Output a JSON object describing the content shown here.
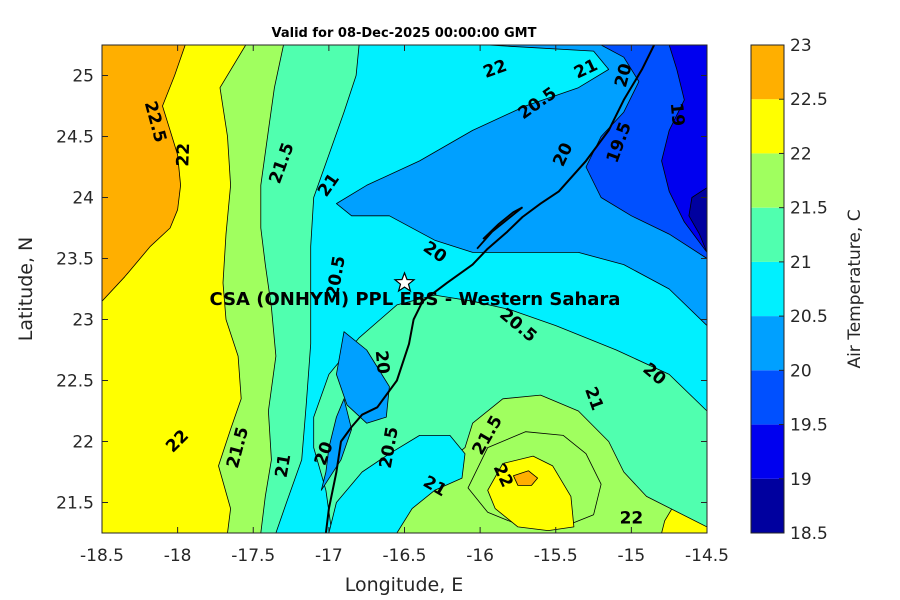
{
  "chart_data": {
    "type": "heatmap",
    "subtype": "filled-contour map",
    "title": "Valid for 08-Dec-2025 00:00:00 GMT",
    "xlabel": "Longitude, E",
    "ylabel": "Latitude, N",
    "xlim": [
      -18.5,
      -14.5
    ],
    "ylim": [
      21.25,
      25.25
    ],
    "xticks": [
      {
        "value": -18.5,
        "label": "-18.5"
      },
      {
        "value": -18,
        "label": "-18"
      },
      {
        "value": -17.5,
        "label": "-17.5"
      },
      {
        "value": -17,
        "label": "-17"
      },
      {
        "value": -16.5,
        "label": "-16.5"
      },
      {
        "value": -16,
        "label": "-16"
      },
      {
        "value": -15.5,
        "label": "-15.5"
      },
      {
        "value": -15,
        "label": "-15"
      },
      {
        "value": -14.5,
        "label": "-14.5"
      }
    ],
    "yticks": [
      {
        "value": 21.5,
        "label": "21.5"
      },
      {
        "value": 22,
        "label": "22"
      },
      {
        "value": 22.5,
        "label": "22.5"
      },
      {
        "value": 23,
        "label": "23"
      },
      {
        "value": 23.5,
        "label": "23.5"
      },
      {
        "value": 24,
        "label": "24"
      },
      {
        "value": 24.5,
        "label": "24.5"
      },
      {
        "value": 25,
        "label": "25"
      }
    ],
    "colorbar": {
      "label": "Air Temperature, C",
      "levels": [
        {
          "value": 18.5,
          "label": "18.5",
          "color": "#00009f"
        },
        {
          "value": 19,
          "label": "19",
          "color": "#0000ef"
        },
        {
          "value": 19.5,
          "label": "19.5",
          "color": "#0050ff"
        },
        {
          "value": 20,
          "label": "20",
          "color": "#00a0ff"
        },
        {
          "value": 20.5,
          "label": "20.5",
          "color": "#00f0ff"
        },
        {
          "value": 21,
          "label": "21",
          "color": "#50ffaf"
        },
        {
          "value": 21.5,
          "label": "21.5",
          "color": "#a0ff5f"
        },
        {
          "value": 22,
          "label": "22",
          "color": "#ffff00"
        },
        {
          "value": 22.5,
          "label": "22.5",
          "color": "#ffaf00"
        },
        {
          "value": 23,
          "label": "23",
          "color": "#ff5000"
        }
      ]
    },
    "regions": [
      {
        "level": 22,
        "points": [
          [
            -18.5,
            21.25
          ],
          [
            -14.5,
            21.25
          ],
          [
            -14.5,
            25.25
          ],
          [
            -18.5,
            25.25
          ]
        ]
      },
      {
        "level": 22.5,
        "points": [
          [
            -18.5,
            23.15
          ],
          [
            -18.5,
            25.25
          ],
          [
            -17.95,
            25.25
          ],
          [
            -18.02,
            25.0
          ],
          [
            -18.1,
            24.75
          ],
          [
            -18.05,
            24.55
          ],
          [
            -18.0,
            24.35
          ],
          [
            -17.98,
            24.1
          ],
          [
            -18.0,
            23.9
          ],
          [
            -18.05,
            23.75
          ],
          [
            -18.18,
            23.6
          ],
          [
            -18.35,
            23.35
          ]
        ]
      },
      {
        "level": 21.5,
        "points": [
          [
            -17.55,
            25.25
          ],
          [
            -14.5,
            25.25
          ],
          [
            -14.5,
            21.75
          ],
          [
            -14.65,
            21.62
          ],
          [
            -14.78,
            21.35
          ],
          [
            -14.8,
            21.25
          ],
          [
            -17.67,
            21.25
          ],
          [
            -17.65,
            21.45
          ],
          [
            -17.73,
            21.8
          ],
          [
            -17.65,
            22.1
          ],
          [
            -17.58,
            22.35
          ],
          [
            -17.6,
            22.7
          ],
          [
            -17.68,
            23.0
          ],
          [
            -17.7,
            23.3
          ],
          [
            -17.68,
            23.7
          ],
          [
            -17.65,
            24.1
          ],
          [
            -17.67,
            24.5
          ],
          [
            -17.72,
            24.9
          ]
        ]
      },
      {
        "level": 21,
        "points": [
          [
            -17.3,
            25.25
          ],
          [
            -14.5,
            25.25
          ],
          [
            -14.5,
            21.3
          ],
          [
            -14.9,
            21.55
          ],
          [
            -15.05,
            21.75
          ],
          [
            -15.15,
            22.0
          ],
          [
            -15.35,
            22.25
          ],
          [
            -15.6,
            22.38
          ],
          [
            -15.85,
            22.35
          ],
          [
            -16.05,
            22.15
          ],
          [
            -16.1,
            21.95
          ],
          [
            -16.3,
            21.75
          ],
          [
            -16.45,
            21.55
          ],
          [
            -16.6,
            21.35
          ],
          [
            -16.62,
            21.25
          ],
          [
            -17.45,
            21.25
          ],
          [
            -17.42,
            21.55
          ],
          [
            -17.38,
            21.85
          ],
          [
            -17.4,
            22.25
          ],
          [
            -17.35,
            22.7
          ],
          [
            -17.38,
            23.1
          ],
          [
            -17.42,
            23.45
          ],
          [
            -17.45,
            23.75
          ],
          [
            -17.45,
            24.1
          ],
          [
            -17.4,
            24.55
          ],
          [
            -17.36,
            24.9
          ]
        ]
      },
      {
        "level": 21.5,
        "points": [
          [
            -16.08,
            21.62
          ],
          [
            -15.95,
            21.95
          ],
          [
            -15.7,
            22.08
          ],
          [
            -15.45,
            22.05
          ],
          [
            -15.3,
            21.9
          ],
          [
            -15.2,
            21.65
          ],
          [
            -15.25,
            21.4
          ],
          [
            -15.45,
            21.3
          ],
          [
            -15.75,
            21.32
          ],
          [
            -15.95,
            21.42
          ]
        ]
      },
      {
        "level": 22,
        "points": [
          [
            -15.95,
            21.6
          ],
          [
            -15.85,
            21.82
          ],
          [
            -15.65,
            21.88
          ],
          [
            -15.52,
            21.8
          ],
          [
            -15.4,
            21.55
          ],
          [
            -15.38,
            21.3
          ],
          [
            -15.55,
            21.27
          ],
          [
            -15.75,
            21.3
          ],
          [
            -15.9,
            21.45
          ]
        ]
      },
      {
        "level": 22.5,
        "points": [
          [
            -15.78,
            21.72
          ],
          [
            -15.68,
            21.76
          ],
          [
            -15.62,
            21.7
          ],
          [
            -15.66,
            21.64
          ],
          [
            -15.75,
            21.64
          ]
        ]
      },
      {
        "level": 20.5,
        "points": [
          [
            -16.8,
            25.25
          ],
          [
            -14.5,
            25.25
          ],
          [
            -14.5,
            22.25
          ],
          [
            -14.75,
            22.55
          ],
          [
            -15.1,
            22.75
          ],
          [
            -15.5,
            22.95
          ],
          [
            -15.8,
            23.08
          ],
          [
            -16.05,
            23.15
          ],
          [
            -16.3,
            23.2
          ],
          [
            -16.55,
            23.12
          ],
          [
            -16.8,
            22.85
          ],
          [
            -17.0,
            22.55
          ],
          [
            -17.1,
            22.2
          ],
          [
            -17.1,
            21.95
          ],
          [
            -17.02,
            21.6
          ],
          [
            -16.98,
            21.25
          ],
          [
            -16.95,
            21.25
          ],
          [
            -17.35,
            21.25
          ],
          [
            -17.28,
            21.5
          ],
          [
            -17.18,
            21.85
          ],
          [
            -17.15,
            22.3
          ],
          [
            -17.12,
            22.8
          ],
          [
            -17.12,
            23.3
          ],
          [
            -17.12,
            23.6
          ],
          [
            -17.1,
            24.0
          ],
          [
            -17.0,
            24.35
          ],
          [
            -16.9,
            24.7
          ],
          [
            -16.82,
            25.0
          ]
        ]
      },
      {
        "level": 20.5,
        "points": [
          [
            -17.0,
            21.25
          ],
          [
            -16.55,
            21.25
          ],
          [
            -16.45,
            21.45
          ],
          [
            -16.3,
            21.6
          ],
          [
            -16.12,
            21.7
          ],
          [
            -16.1,
            21.9
          ],
          [
            -16.2,
            22.05
          ],
          [
            -16.4,
            22.05
          ],
          [
            -16.6,
            21.9
          ],
          [
            -16.78,
            21.75
          ],
          [
            -16.95,
            21.5
          ]
        ]
      },
      {
        "level": 20,
        "points": [
          [
            -15.95,
            25.25
          ],
          [
            -14.5,
            25.25
          ],
          [
            -14.5,
            22.95
          ],
          [
            -14.75,
            23.25
          ],
          [
            -15.05,
            23.45
          ],
          [
            -15.35,
            23.55
          ],
          [
            -15.7,
            23.55
          ],
          [
            -16.05,
            23.55
          ],
          [
            -16.3,
            23.65
          ],
          [
            -16.6,
            23.85
          ],
          [
            -16.85,
            23.85
          ],
          [
            -16.95,
            23.95
          ],
          [
            -16.75,
            24.1
          ],
          [
            -16.4,
            24.3
          ],
          [
            -16.05,
            24.55
          ],
          [
            -15.7,
            24.75
          ],
          [
            -15.35,
            24.9
          ],
          [
            -15.15,
            25.05
          ],
          [
            -15.25,
            25.2
          ]
        ]
      },
      {
        "level": 20,
        "points": [
          [
            -16.9,
            22.9
          ],
          [
            -16.75,
            22.75
          ],
          [
            -16.6,
            22.45
          ],
          [
            -16.62,
            22.2
          ],
          [
            -16.75,
            22.15
          ],
          [
            -16.88,
            22.3
          ],
          [
            -16.95,
            22.55
          ]
        ]
      },
      {
        "level": 20,
        "points": [
          [
            -17.05,
            21.6
          ],
          [
            -16.92,
            21.85
          ],
          [
            -16.85,
            22.1
          ],
          [
            -16.9,
            22.35
          ],
          [
            -16.95,
            22.2
          ],
          [
            -17.0,
            21.95
          ],
          [
            -17.02,
            21.75
          ]
        ]
      },
      {
        "level": 19.5,
        "points": [
          [
            -15.2,
            25.25
          ],
          [
            -14.5,
            25.25
          ],
          [
            -14.5,
            23.5
          ],
          [
            -14.75,
            23.7
          ],
          [
            -15.0,
            23.85
          ],
          [
            -15.2,
            24.0
          ],
          [
            -15.3,
            24.25
          ],
          [
            -15.2,
            24.5
          ],
          [
            -15.05,
            24.7
          ],
          [
            -14.95,
            24.95
          ],
          [
            -15.05,
            25.15
          ]
        ]
      },
      {
        "level": 19,
        "points": [
          [
            -14.75,
            25.25
          ],
          [
            -14.5,
            25.25
          ],
          [
            -14.5,
            23.55
          ],
          [
            -14.65,
            23.8
          ],
          [
            -14.75,
            24.05
          ],
          [
            -14.8,
            24.3
          ],
          [
            -14.75,
            24.55
          ],
          [
            -14.65,
            24.8
          ],
          [
            -14.7,
            25.05
          ]
        ]
      },
      {
        "level": 18.5,
        "points": [
          [
            -14.5,
            23.55
          ],
          [
            -14.55,
            23.7
          ],
          [
            -14.62,
            23.85
          ],
          [
            -14.6,
            24.0
          ],
          [
            -14.5,
            24.08
          ]
        ]
      }
    ],
    "coastline": [
      [
        -17.02,
        21.25
      ],
      [
        -17.0,
        21.45
      ],
      [
        -16.95,
        21.75
      ],
      [
        -16.92,
        22.0
      ],
      [
        -16.85,
        22.12
      ],
      [
        -16.78,
        22.22
      ],
      [
        -16.68,
        22.28
      ],
      [
        -16.55,
        22.5
      ],
      [
        -16.47,
        22.8
      ],
      [
        -16.44,
        23.0
      ],
      [
        -16.38,
        23.15
      ],
      [
        -16.22,
        23.3
      ],
      [
        -16.05,
        23.45
      ],
      [
        -15.95,
        23.58
      ],
      [
        -15.82,
        23.72
      ],
      [
        -15.72,
        23.84
      ],
      [
        -15.6,
        23.95
      ],
      [
        -15.48,
        24.05
      ],
      [
        -15.3,
        24.3
      ],
      [
        -15.15,
        24.55
      ],
      [
        -15.05,
        24.8
      ],
      [
        -14.93,
        25.05
      ],
      [
        -14.85,
        25.25
      ]
    ],
    "peninsula": [
      [
        -16.02,
        23.58
      ],
      [
        -15.92,
        23.72
      ],
      [
        -15.82,
        23.82
      ],
      [
        -15.72,
        23.92
      ],
      [
        -15.78,
        23.88
      ],
      [
        -15.88,
        23.78
      ],
      [
        -15.98,
        23.66
      ]
    ],
    "contour_labels": [
      {
        "text": "22",
        "lon": -15.9,
        "lat": 25.05,
        "angle": -20
      },
      {
        "text": "21",
        "lon": -15.3,
        "lat": 25.05,
        "angle": -25
      },
      {
        "text": "20",
        "lon": -15.05,
        "lat": 25.0,
        "angle": -75
      },
      {
        "text": "19",
        "lon": -14.7,
        "lat": 24.68,
        "angle": 85
      },
      {
        "text": "20.5",
        "lon": -15.62,
        "lat": 24.77,
        "angle": -35
      },
      {
        "text": "19.5",
        "lon": -15.08,
        "lat": 24.45,
        "angle": -70
      },
      {
        "text": "20",
        "lon": -15.45,
        "lat": 24.35,
        "angle": -65
      },
      {
        "text": "22.5",
        "lon": -18.15,
        "lat": 24.62,
        "angle": 75
      },
      {
        "text": "22",
        "lon": -17.96,
        "lat": 24.35,
        "angle": -88
      },
      {
        "text": "21.5",
        "lon": -17.31,
        "lat": 24.28,
        "angle": -70
      },
      {
        "text": "21",
        "lon": -17.0,
        "lat": 24.1,
        "angle": -55
      },
      {
        "text": "20",
        "lon": -16.3,
        "lat": 23.55,
        "angle": 35
      },
      {
        "text": "20.5",
        "lon": -16.95,
        "lat": 23.35,
        "angle": -80
      },
      {
        "text": "20.5",
        "lon": -15.75,
        "lat": 22.95,
        "angle": 40
      },
      {
        "text": "20",
        "lon": -16.65,
        "lat": 22.65,
        "angle": 85
      },
      {
        "text": "20",
        "lon": -14.85,
        "lat": 22.55,
        "angle": 40
      },
      {
        "text": "21",
        "lon": -15.25,
        "lat": 22.35,
        "angle": 70
      },
      {
        "text": "22",
        "lon": -18.0,
        "lat": 22.0,
        "angle": -45
      },
      {
        "text": "21.5",
        "lon": -17.6,
        "lat": 21.95,
        "angle": -75
      },
      {
        "text": "21",
        "lon": -17.3,
        "lat": 21.8,
        "angle": -80
      },
      {
        "text": "20",
        "lon": -17.03,
        "lat": 21.9,
        "angle": -70
      },
      {
        "text": "20.5",
        "lon": -16.6,
        "lat": 21.95,
        "angle": -80
      },
      {
        "text": "21.5",
        "lon": -15.95,
        "lat": 22.05,
        "angle": -60
      },
      {
        "text": "22",
        "lon": -15.85,
        "lat": 21.72,
        "angle": 65
      },
      {
        "text": "21",
        "lon": -16.3,
        "lat": 21.63,
        "angle": 30
      },
      {
        "text": "22",
        "lon": -15.0,
        "lat": 21.37,
        "angle": 0
      }
    ],
    "site": {
      "name": "CSA (ONHYM) PPL EBS - Western Sahara",
      "lon": -16.5,
      "lat": 23.3
    }
  }
}
